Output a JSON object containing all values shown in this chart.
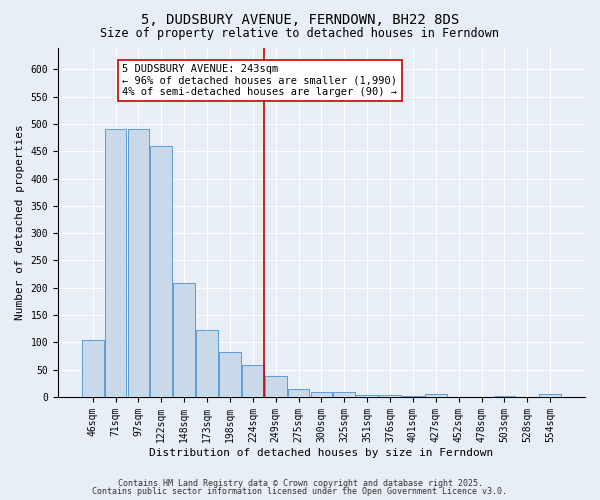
{
  "title": "5, DUDSBURY AVENUE, FERNDOWN, BH22 8DS",
  "subtitle": "Size of property relative to detached houses in Ferndown",
  "xlabel": "Distribution of detached houses by size in Ferndown",
  "ylabel": "Number of detached properties",
  "footer_line1": "Contains HM Land Registry data © Crown copyright and database right 2025.",
  "footer_line2": "Contains public sector information licensed under the Open Government Licence v3.0.",
  "categories": [
    "46sqm",
    "71sqm",
    "97sqm",
    "122sqm",
    "148sqm",
    "173sqm",
    "198sqm",
    "224sqm",
    "249sqm",
    "275sqm",
    "300sqm",
    "325sqm",
    "351sqm",
    "376sqm",
    "401sqm",
    "427sqm",
    "452sqm",
    "478sqm",
    "503sqm",
    "528sqm",
    "554sqm"
  ],
  "values": [
    105,
    490,
    490,
    460,
    208,
    122,
    82,
    58,
    38,
    15,
    10,
    10,
    3,
    3,
    1,
    5,
    0,
    0,
    1,
    0,
    6
  ],
  "bar_color": "#c9d9ea",
  "bar_edge_color": "#5b9bd5",
  "vline_x_idx": 8,
  "vline_color": "#cc0000",
  "annotation_title": "5 DUDSBURY AVENUE: 243sqm",
  "annotation_line1": "← 96% of detached houses are smaller (1,990)",
  "annotation_line2": "4% of semi-detached houses are larger (90) →",
  "ylim": [
    0,
    640
  ],
  "yticks": [
    0,
    50,
    100,
    150,
    200,
    250,
    300,
    350,
    400,
    450,
    500,
    550,
    600
  ],
  "bg_color": "#e8eef5",
  "plot_bg_color": "#e8eef5",
  "grid_color": "#ffffff",
  "title_fontsize": 10,
  "subtitle_fontsize": 8.5,
  "tick_fontsize": 7,
  "label_fontsize": 8,
  "footer_fontsize": 6,
  "ann_fontsize": 7.5
}
